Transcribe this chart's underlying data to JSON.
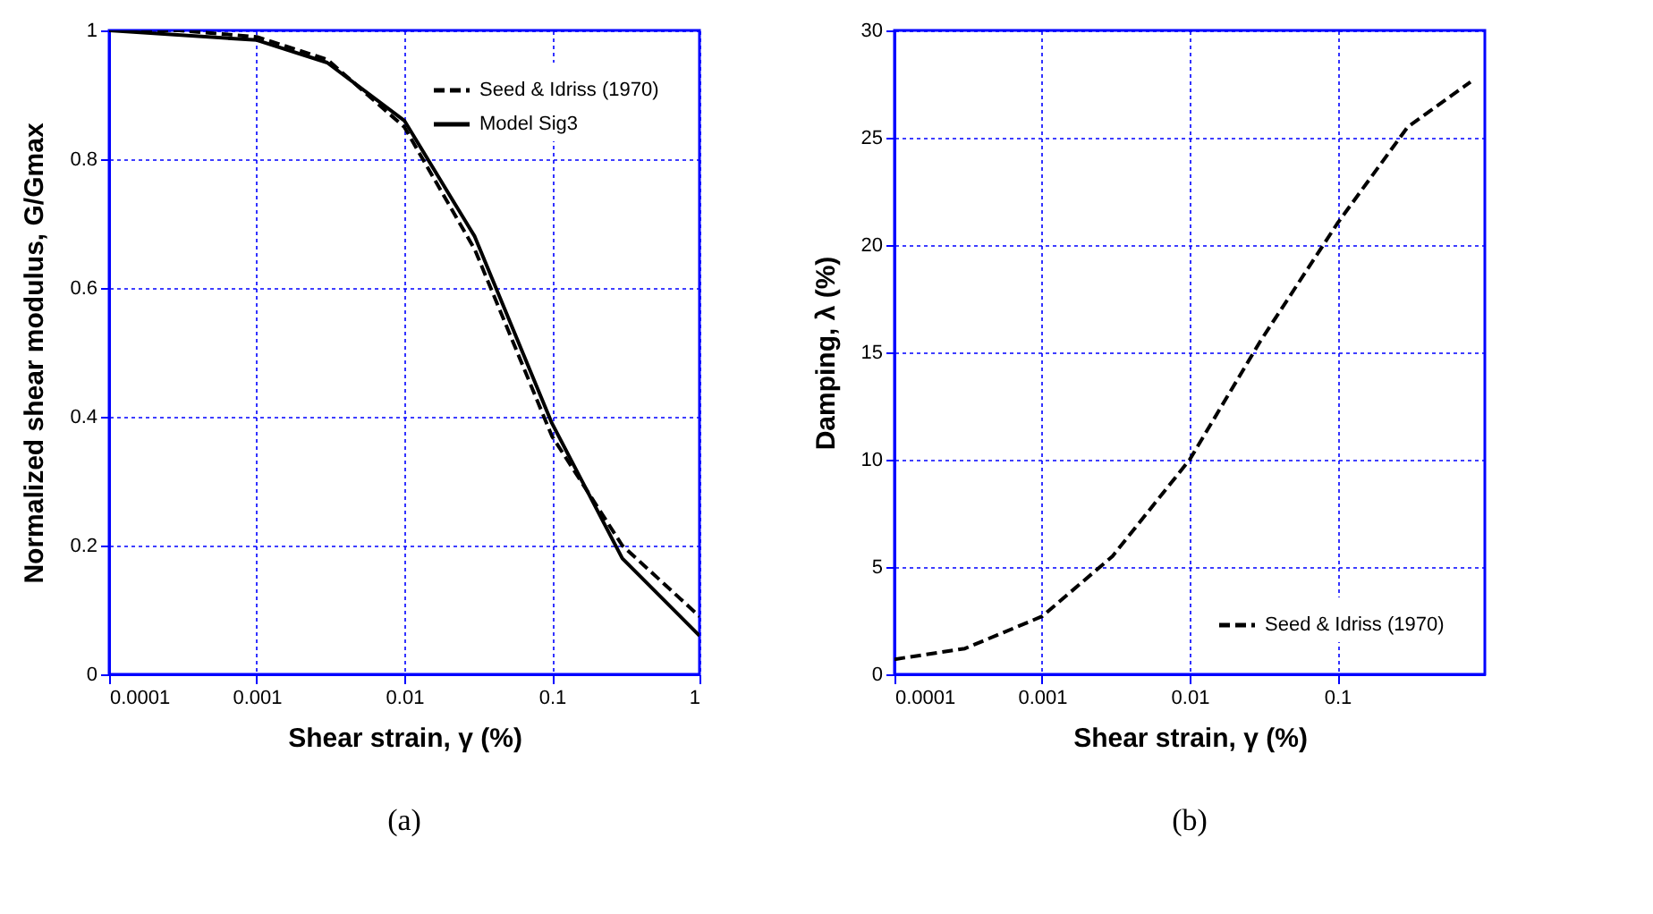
{
  "chart_data": [
    {
      "type": "line",
      "xlabel": "Shear strain, γ (%)",
      "ylabel": "Normalized shear modulus, G/Gmax",
      "log": "x",
      "grid": true,
      "legend": "top right",
      "marker": "none",
      "xlim": [
        0.0001,
        1
      ],
      "xticks": [
        0.0001,
        0.001,
        0.01,
        0.1,
        1
      ],
      "ylim": [
        0,
        1
      ],
      "yticks": [
        0,
        0.2,
        0.4,
        0.6,
        0.8,
        1
      ],
      "series": [
        {
          "name": "Seed & Idriss (1970)",
          "color": "#000000",
          "line_style": "dashed",
          "x": [
            0.0001,
            0.0003,
            0.001,
            0.003,
            0.01,
            0.03,
            0.1,
            0.3,
            1
          ],
          "values": [
            1,
            1,
            0.99,
            0.955,
            0.85,
            0.66,
            0.37,
            0.2,
            0.09
          ]
        },
        {
          "name": "Model Sig3",
          "color": "#000000",
          "line_style": "solid",
          "x": [
            0.0001,
            0.001,
            0.003,
            0.01,
            0.03,
            0.1,
            0.3,
            1
          ],
          "values": [
            1,
            0.985,
            0.95,
            0.86,
            0.68,
            0.39,
            0.18,
            0.06
          ]
        }
      ],
      "annotations": [
        "(a)"
      ]
    },
    {
      "type": "line",
      "xlabel": "Shear strain, γ (%)",
      "ylabel": "Damping, λ (%)",
      "log": "x",
      "grid": true,
      "legend": "bottom right",
      "marker": "none",
      "xlim": [
        0.0001,
        1
      ],
      "xticks": [
        0.0001,
        0.001,
        0.01,
        0.1
      ],
      "ylim": [
        0,
        30
      ],
      "yticks": [
        0,
        5,
        10,
        15,
        20,
        25,
        30
      ],
      "series": [
        {
          "name": "Seed & Idriss (1970)",
          "color": "#000000",
          "line_style": "dashed",
          "x": [
            0.0001,
            0.0003,
            0.001,
            0.003,
            0.01,
            0.03,
            0.1,
            0.3,
            0.8
          ],
          "values": [
            0.7,
            1.2,
            2.7,
            5.5,
            10,
            15.5,
            21,
            25.5,
            27.6
          ]
        }
      ],
      "annotations": [
        "(b)"
      ]
    }
  ]
}
